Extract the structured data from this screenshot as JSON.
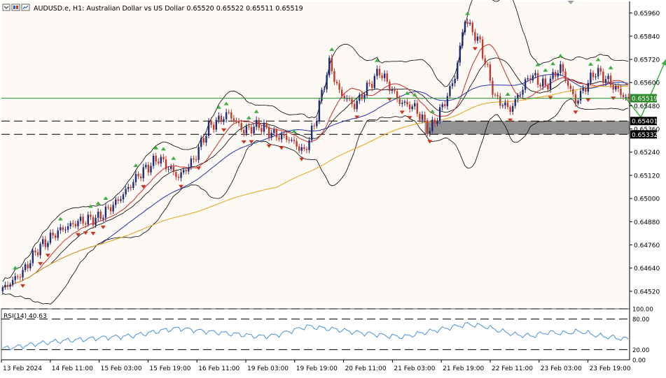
{
  "header": {
    "symbol": "AUDUSD.e",
    "timeframe": "H1",
    "description": "Australian Dollar vs US Dollar",
    "ohlc": [
      "0.65520",
      "0.65522",
      "0.65511",
      "0.65519"
    ]
  },
  "colors": {
    "background": "#fdf9f4",
    "bull_candle": "#1f2a78",
    "bear_candle": "#c0392b",
    "price_line": "#2e8b2e",
    "ma_fast": "#cc2a2a",
    "ma_mid": "#2233aa",
    "ma_slow": "#e3a21a",
    "bollinger": "#000000",
    "rsi": "#4a90d9",
    "zone": "#808080",
    "fractal_up": "#3cb043",
    "fractal_down": "#d03020"
  },
  "chart_data": [
    {
      "type": "candlestick",
      "name": "AUDUSD.e H1",
      "ylim": [
        0.6444,
        0.6602
      ],
      "y_ticks": [
        "0.65960",
        "0.65840",
        "0.65720",
        "0.65600",
        "0.65480",
        "0.65360",
        "0.65240",
        "0.65120",
        "0.65000",
        "0.64880",
        "0.64760",
        "0.64640",
        "0.64520"
      ],
      "x_ticks": [
        "13 Feb 2024",
        "14 Feb 11:00",
        "15 Feb 03:00",
        "15 Feb 19:00",
        "16 Feb 11:00",
        "19 Feb 03:00",
        "19 Feb 19:00",
        "20 Feb 11:00",
        "21 Feb 03:00",
        "21 Feb 19:00",
        "22 Feb 11:00",
        "23 Feb 03:00",
        "23 Feb 19:00"
      ],
      "close_path": [
        [
          0,
          0.6453
        ],
        [
          8,
          0.6462
        ],
        [
          14,
          0.6474
        ],
        [
          22,
          0.6483
        ],
        [
          30,
          0.6488
        ],
        [
          38,
          0.649
        ],
        [
          46,
          0.6499
        ],
        [
          54,
          0.6512
        ],
        [
          62,
          0.6521
        ],
        [
          70,
          0.6511
        ],
        [
          76,
          0.652
        ],
        [
          82,
          0.6537
        ],
        [
          90,
          0.6544
        ],
        [
          96,
          0.6535
        ],
        [
          102,
          0.6538
        ],
        [
          108,
          0.6533
        ],
        [
          114,
          0.6531
        ],
        [
          120,
          0.6524
        ],
        [
          124,
          0.6538
        ],
        [
          130,
          0.657
        ],
        [
          134,
          0.6555
        ],
        [
          140,
          0.6548
        ],
        [
          150,
          0.6566
        ],
        [
          158,
          0.655
        ],
        [
          164,
          0.6547
        ],
        [
          170,
          0.6535
        ],
        [
          176,
          0.655
        ],
        [
          180,
          0.6563
        ],
        [
          184,
          0.6593
        ],
        [
          190,
          0.658
        ],
        [
          196,
          0.6552
        ],
        [
          202,
          0.6546
        ],
        [
          210,
          0.6564
        ],
        [
          216,
          0.6558
        ],
        [
          222,
          0.6568
        ],
        [
          228,
          0.655
        ],
        [
          236,
          0.6566
        ],
        [
          240,
          0.6562
        ],
        [
          244,
          0.6557
        ],
        [
          248,
          0.6552
        ]
      ],
      "last_price": 0.65519,
      "price_label": "0.65519",
      "zone": {
        "upper": 0.65401,
        "lower": 0.65332,
        "upper_label": "0.65401",
        "lower_label": "0.65332"
      },
      "projection": [
        [
          248,
          0.65519
        ],
        [
          254,
          0.6542
        ],
        [
          264,
          0.6572
        ]
      ]
    },
    {
      "type": "line",
      "name": "RSI(14)",
      "value": 40.63,
      "label_value": "40.63",
      "ylim": [
        0,
        100
      ],
      "y_ticks": [
        "100.00",
        "80.00",
        "20.00",
        "0.00"
      ],
      "levels": [
        100,
        80,
        20,
        0
      ],
      "values": [
        22,
        26,
        31,
        35,
        38,
        40,
        43,
        45,
        47,
        52,
        58,
        62,
        58,
        55,
        52,
        49,
        46,
        48,
        57,
        66,
        62,
        59,
        54,
        51,
        47,
        45,
        52,
        58,
        64,
        70,
        66,
        57,
        49,
        47,
        54,
        52,
        56,
        48,
        44,
        40
      ]
    }
  ]
}
